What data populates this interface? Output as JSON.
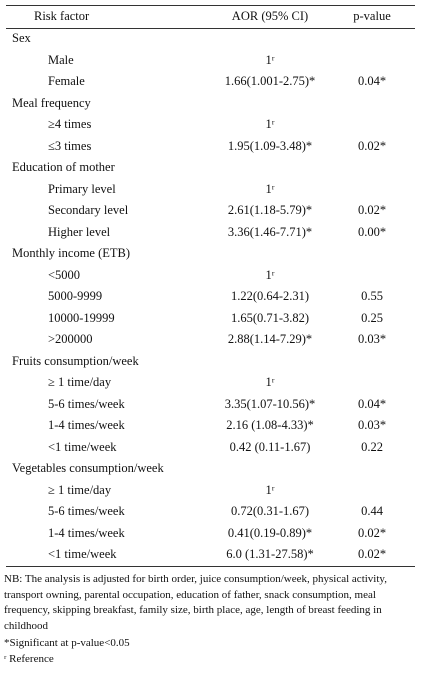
{
  "table": {
    "header": [
      "Risk factor",
      "AOR (95% CI)",
      "p-value"
    ],
    "groups": [
      {
        "label": "Sex",
        "rows": [
          [
            "Male",
            "1ʳ",
            ""
          ],
          [
            "Female",
            "1.66(1.001-2.75)*",
            "0.04*"
          ]
        ]
      },
      {
        "label": "Meal frequency",
        "rows": [
          [
            "≥4 times",
            "1ʳ",
            ""
          ],
          [
            "≤3 times",
            "1.95(1.09-3.48)*",
            "0.02*"
          ]
        ]
      },
      {
        "label": "Education of mother",
        "rows": [
          [
            "Primary level",
            "1ʳ",
            ""
          ],
          [
            "Secondary level",
            "2.61(1.18-5.79)*",
            "0.02*"
          ],
          [
            "Higher level",
            "3.36(1.46-7.71)*",
            "0.00*"
          ]
        ]
      },
      {
        "label": "Monthly income (ETB)",
        "rows": [
          [
            "<5000",
            "1ʳ",
            ""
          ],
          [
            "5000-9999",
            "1.22(0.64-2.31)",
            "0.55"
          ],
          [
            "10000-19999",
            "1.65(0.71-3.82)",
            "0.25"
          ],
          [
            ">200000",
            "2.88(1.14-7.29)*",
            "0.03*"
          ]
        ]
      },
      {
        "label": "Fruits consumption/week",
        "rows": [
          [
            "≥ 1 time/day",
            "1ʳ",
            ""
          ],
          [
            "5-6 times/week",
            "3.35(1.07-10.56)*",
            "0.04*"
          ],
          [
            "1-4 times/week",
            "2.16 (1.08-4.33)*",
            "0.03*"
          ],
          [
            "<1 time/week",
            "0.42 (0.11-1.67)",
            "0.22"
          ]
        ]
      },
      {
        "label": "Vegetables consumption/week",
        "rows": [
          [
            "≥ 1 time/day",
            "1ʳ",
            ""
          ],
          [
            "5-6 times/week",
            "0.72(0.31-1.67)",
            "0.44"
          ],
          [
            "1-4 times/week",
            "0.41(0.19-0.89)*",
            "0.02*"
          ],
          [
            "<1 time/week",
            "6.0 (1.31-27.58)*",
            "0.02*"
          ]
        ]
      }
    ]
  },
  "notes": [
    "NB: The analysis is adjusted for birth order, juice consumption/week, physical activity, transport owning, parental occupation, education of father, snack consumption, meal frequency, skipping breakfast, family size, birth place, age, length of breast feeding in childhood",
    "*Significant at p-value<0.05",
    "ʳ Reference"
  ]
}
